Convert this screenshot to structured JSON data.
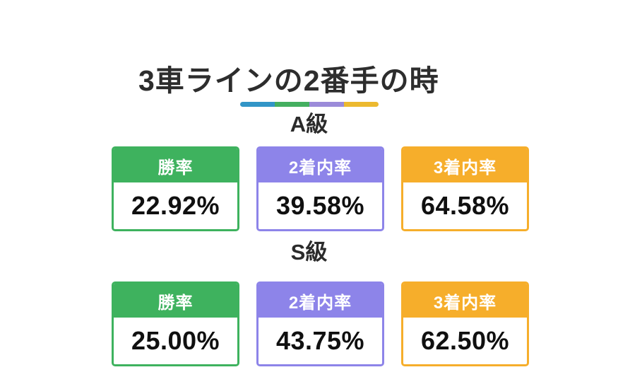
{
  "title": "3車ラインの2番手の時",
  "divider_segments": [
    {
      "name": "blue",
      "color": "#3295c7"
    },
    {
      "name": "green",
      "color": "#44af60"
    },
    {
      "name": "purple",
      "color": "#9b8bd9"
    },
    {
      "name": "yellow",
      "color": "#ecb92f"
    }
  ],
  "colors": {
    "win_rate_green": "#3eb25e",
    "top2_purple": "#8d84e9",
    "top3_orange": "#f6ae2b",
    "title_text": "#2d2d2d",
    "heading_text": "#2b2b2b",
    "value_text": "#101010",
    "background": "#ffffff"
  },
  "sections": [
    {
      "heading": "A級",
      "cards": [
        {
          "label": "勝率",
          "value": "22.92%",
          "color": "#3eb25e"
        },
        {
          "label": "2着内率",
          "value": "39.58%",
          "color": "#8d84e9"
        },
        {
          "label": "3着内率",
          "value": "64.58%",
          "color": "#f6ae2b"
        }
      ]
    },
    {
      "heading": "S級",
      "cards": [
        {
          "label": "勝率",
          "value": "25.00%",
          "color": "#3eb25e"
        },
        {
          "label": "2着内率",
          "value": "43.75%",
          "color": "#8d84e9"
        },
        {
          "label": "3着内率",
          "value": "62.50%",
          "color": "#f6ae2b"
        }
      ]
    }
  ],
  "chart_data": {
    "type": "table",
    "title": "3車ラインの2番手の時",
    "groups": [
      "A級",
      "S級"
    ],
    "columns": [
      "勝率",
      "2着内率",
      "3着内率"
    ],
    "rows": [
      {
        "group": "A級",
        "values": [
          22.92,
          39.58,
          64.58
        ]
      },
      {
        "group": "S級",
        "values": [
          25.0,
          43.75,
          62.5
        ]
      }
    ],
    "unit": "%"
  }
}
